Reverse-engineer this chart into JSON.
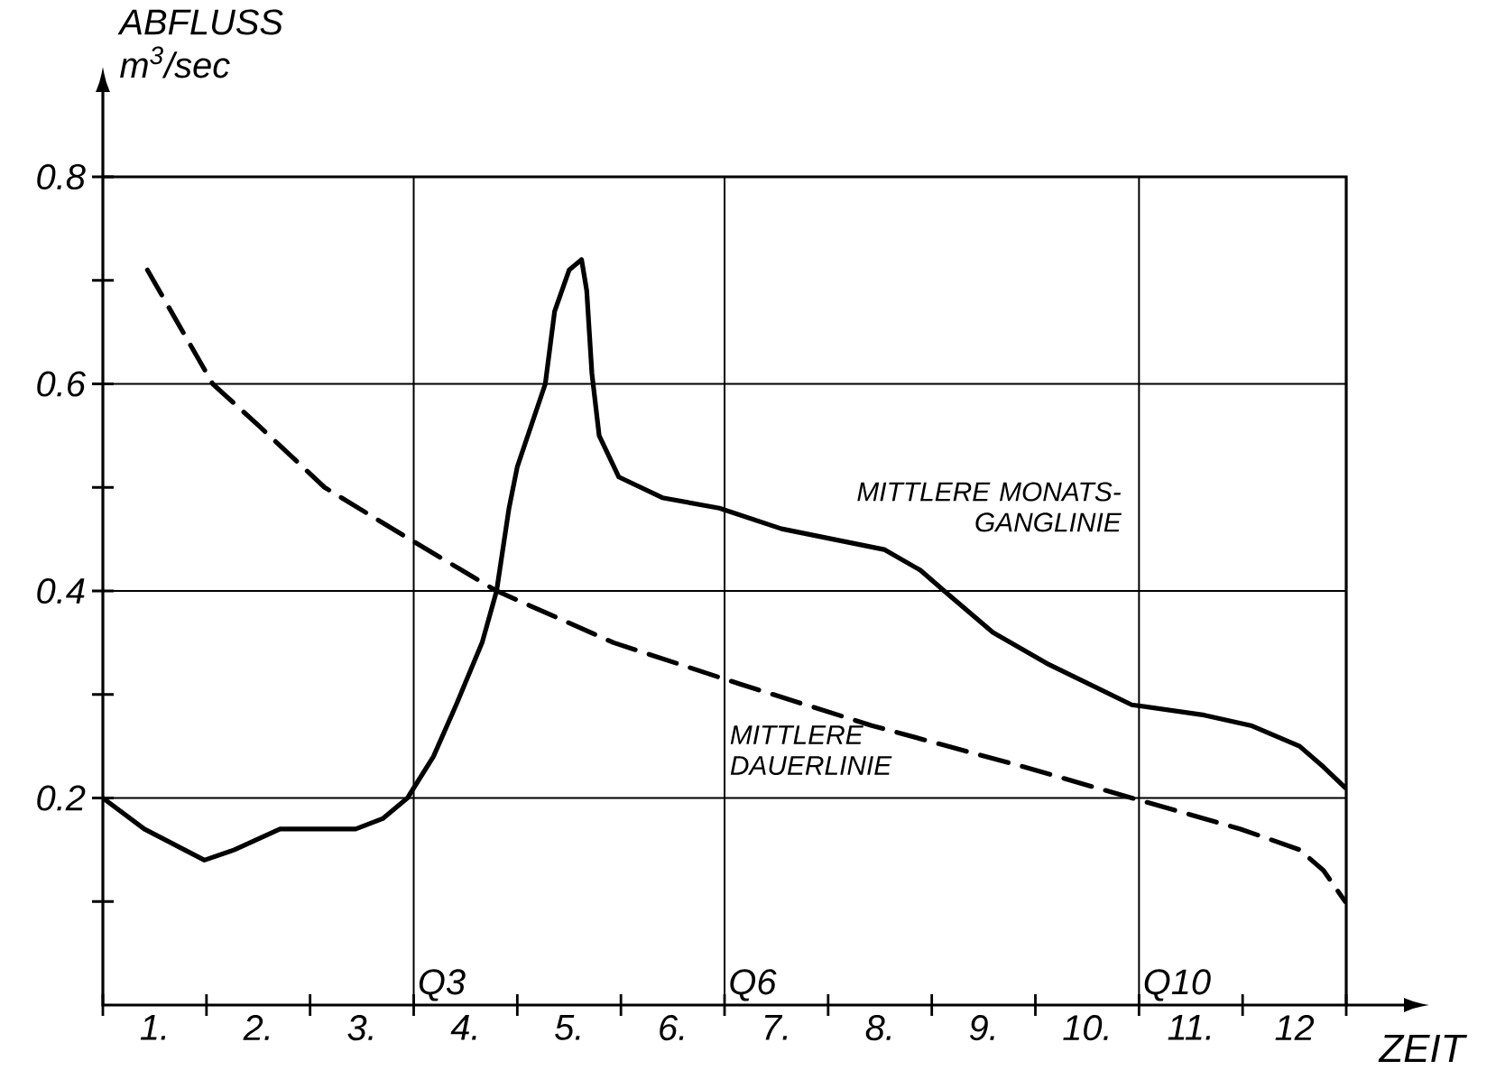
{
  "chart_data": {
    "type": "line",
    "xlabel": "ZEIT",
    "ylabel": "ABFLUSS m$^{3}$/sec",
    "xlim": [
      0,
      12
    ],
    "ylim": [
      0,
      0.8
    ],
    "xticks": [
      {
        "value": 0,
        "label": null
      },
      {
        "value": 1,
        "label": null
      },
      {
        "value": 2,
        "label": null
      },
      {
        "value": 3,
        "label": null
      },
      {
        "value": 4,
        "label": null
      },
      {
        "value": 5,
        "label": null
      },
      {
        "value": 6,
        "label": null
      },
      {
        "value": 7,
        "label": null
      },
      {
        "value": 8,
        "label": null
      },
      {
        "value": 9,
        "label": null
      },
      {
        "value": 10,
        "label": null
      },
      {
        "value": 11,
        "label": null
      },
      {
        "value": 12,
        "label": null
      },
      {
        "value": 0.5,
        "label": "1."
      },
      {
        "value": 1.5,
        "label": "2."
      },
      {
        "value": 2.5,
        "label": "3."
      },
      {
        "value": 3.5,
        "label": "4."
      },
      {
        "value": 4.5,
        "label": "5."
      },
      {
        "value": 5.5,
        "label": "6."
      },
      {
        "value": 6.5,
        "label": "7."
      },
      {
        "value": 7.5,
        "label": "8."
      },
      {
        "value": 8.5,
        "label": "9."
      },
      {
        "value": 9.5,
        "label": "10."
      },
      {
        "value": 10.5,
        "label": "11."
      },
      {
        "value": 11.5,
        "label": "12"
      }
    ],
    "yticks": [
      {
        "value": 0.1,
        "label": null
      },
      0.2,
      {
        "value": 0.3,
        "label": null
      },
      0.4,
      {
        "value": 0.5,
        "label": null
      },
      0.6,
      {
        "value": 0.7,
        "label": null
      },
      0.8
    ],
    "grid": "y",
    "ref_lines": [
      {
        "axis": "x",
        "value": 3,
        "label": "Q3"
      },
      {
        "axis": "x",
        "value": 6,
        "label": "Q6"
      },
      {
        "axis": "x",
        "value": 10,
        "label": "Q10"
      }
    ],
    "series": [
      {
        "name": "MITTLERE MONATS-GANGLINIE",
        "color": "#000000",
        "line_style": "solid",
        "x": [
          0,
          0.4,
          0.98,
          1.27,
          1.71,
          1.97,
          2.32,
          2.44,
          2.7,
          2.94,
          3.19,
          3.41,
          3.66,
          3.8,
          3.92,
          4.0,
          4.27,
          4.36,
          4.5,
          4.62,
          4.67,
          4.72,
          4.79,
          4.98,
          5.4,
          5.95,
          6.55,
          7.54,
          7.89,
          8.12,
          8.59,
          9.11,
          9.93,
          10.63,
          11.08,
          11.55,
          11.78,
          11.99
        ],
        "values": [
          0.2,
          0.17,
          0.14,
          0.15,
          0.17,
          0.17,
          0.17,
          0.17,
          0.18,
          0.2,
          0.24,
          0.29,
          0.35,
          0.4,
          0.48,
          0.52,
          0.6,
          0.67,
          0.71,
          0.72,
          0.69,
          0.61,
          0.55,
          0.51,
          0.49,
          0.48,
          0.46,
          0.44,
          0.42,
          0.4,
          0.36,
          0.33,
          0.29,
          0.28,
          0.27,
          0.25,
          0.23,
          0.21
        ]
      },
      {
        "name": "MITTLERE DAUERLINIE",
        "color": "#000000",
        "line_style": "dashed",
        "x": [
          0.43,
          1.06,
          1.5,
          2.14,
          2.96,
          3.8,
          4.93,
          6.15,
          7.42,
          8.89,
          9.93,
          10.98,
          11.55,
          11.78,
          11.99
        ],
        "values": [
          0.71,
          0.6,
          0.56,
          0.5,
          0.45,
          0.4,
          0.35,
          0.31,
          0.27,
          0.23,
          0.2,
          0.17,
          0.15,
          0.13,
          0.1
        ]
      }
    ]
  }
}
